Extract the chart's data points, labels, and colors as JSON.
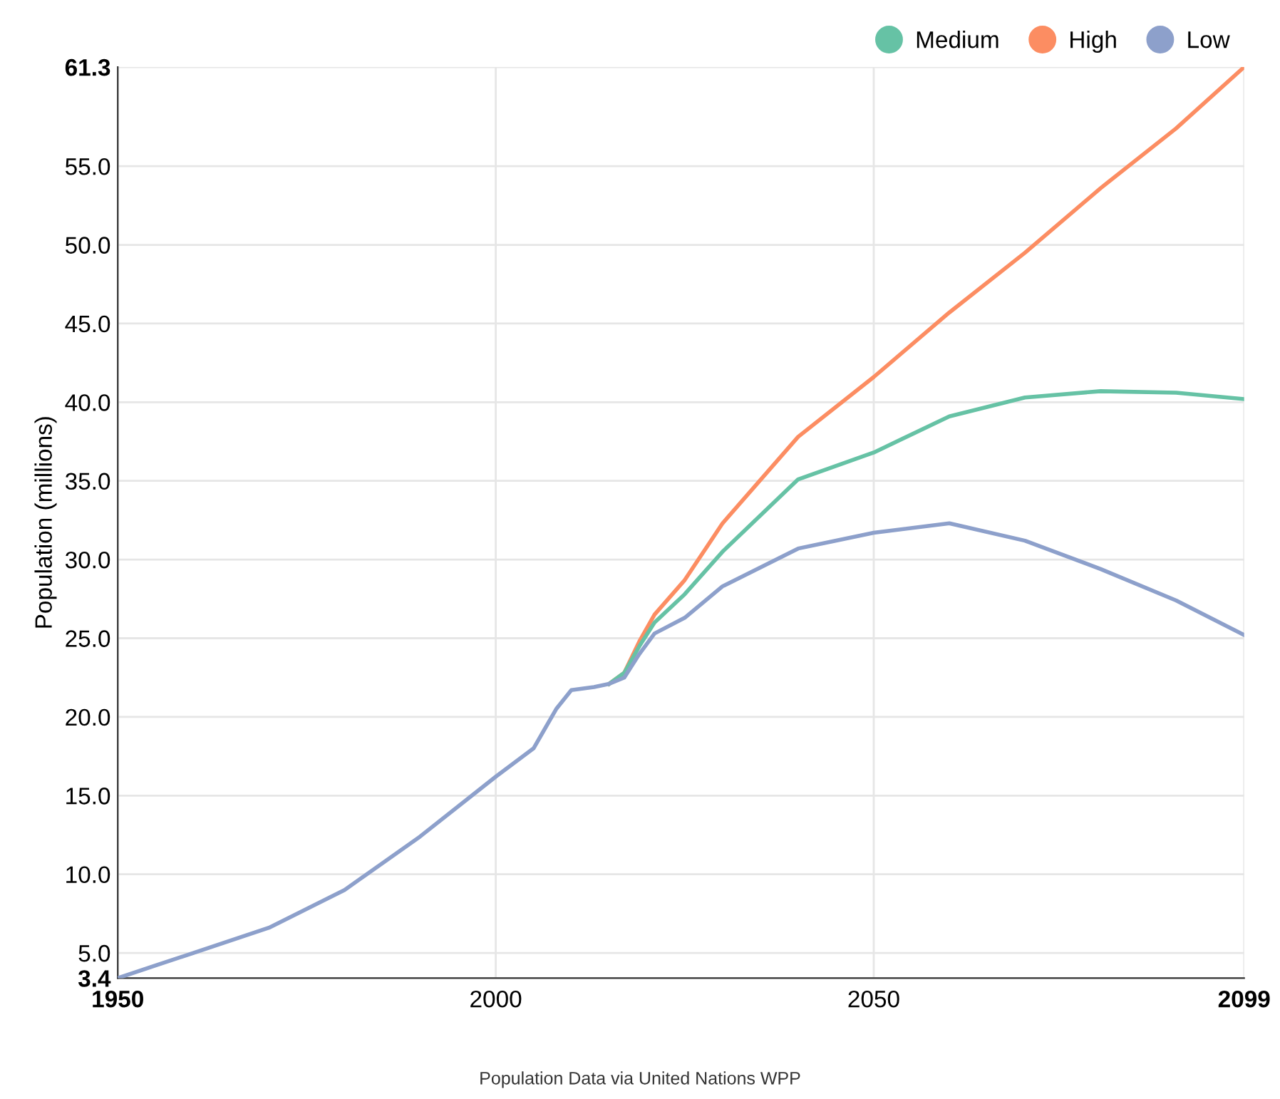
{
  "chart_data": {
    "type": "line",
    "ylabel": "Population (millions)",
    "annotations": [
      "Population Data via United Nations WPP"
    ],
    "x": [
      1950,
      1955,
      1960,
      1970,
      1980,
      1990,
      2000,
      2005,
      2008,
      2010,
      2013,
      2015,
      2017,
      2019,
      2021,
      2025,
      2030,
      2040,
      2050,
      2060,
      2070,
      2080,
      2090,
      2099
    ],
    "series": [
      {
        "name": "Medium",
        "color": "#66c2a5",
        "values": [
          null,
          null,
          null,
          null,
          null,
          null,
          null,
          null,
          null,
          null,
          null,
          22.1,
          22.8,
          24.5,
          26.0,
          27.8,
          30.5,
          35.1,
          36.8,
          39.1,
          40.3,
          40.7,
          40.6,
          40.2
        ]
      },
      {
        "name": "High",
        "color": "#fc8d62",
        "values": [
          null,
          null,
          null,
          null,
          null,
          null,
          null,
          null,
          null,
          null,
          null,
          22.1,
          22.8,
          24.8,
          26.5,
          28.7,
          32.3,
          37.8,
          41.6,
          45.7,
          49.5,
          53.6,
          57.4,
          61.3
        ]
      },
      {
        "name": "Low",
        "color": "#8da0cb",
        "values": [
          3.4,
          4.2,
          5.0,
          6.6,
          9.0,
          12.4,
          16.2,
          18.0,
          20.5,
          21.7,
          21.9,
          22.1,
          22.5,
          24.0,
          25.3,
          26.3,
          28.3,
          30.7,
          31.7,
          32.3,
          31.2,
          29.4,
          27.4,
          25.2
        ]
      }
    ],
    "xlim": [
      1950,
      2099
    ],
    "xticks": [
      1950,
      2000,
      2050,
      2099
    ],
    "ylim": [
      3.4,
      61.3
    ],
    "yticks": [
      {
        "value": 3.4,
        "label": "3.4"
      },
      {
        "value": 5,
        "label": "5.0"
      },
      {
        "value": 10,
        "label": "10.0"
      },
      {
        "value": 15,
        "label": "15.0"
      },
      {
        "value": 20,
        "label": "20.0"
      },
      {
        "value": 25,
        "label": "25.0"
      },
      {
        "value": 30,
        "label": "30.0"
      },
      {
        "value": 35,
        "label": "35.0"
      },
      {
        "value": 40,
        "label": "40.0"
      },
      {
        "value": 45,
        "label": "45.0"
      },
      {
        "value": 50,
        "label": "50.0"
      },
      {
        "value": 55,
        "label": "55.0"
      },
      {
        "value": 61.3,
        "label": "61.3"
      }
    ],
    "grid": true,
    "legend": "top right"
  }
}
